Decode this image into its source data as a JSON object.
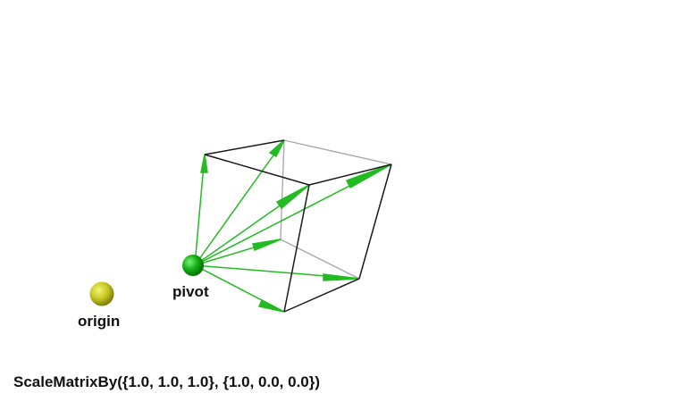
{
  "labels": {
    "origin": "origin",
    "pivot": "pivot"
  },
  "caption": "ScaleMatrixBy({1.0, 1.0, 1.0}, {1.0, 0.0, 0.0})",
  "colors": {
    "arrow": "#22bb22",
    "pivot_sphere": "#11aa11",
    "origin_sphere": "#c8c820",
    "cube_front_edge": "#111111",
    "cube_back_edge": "#999999"
  },
  "icons": {
    "origin": "yellow-sphere",
    "pivot": "green-sphere"
  }
}
